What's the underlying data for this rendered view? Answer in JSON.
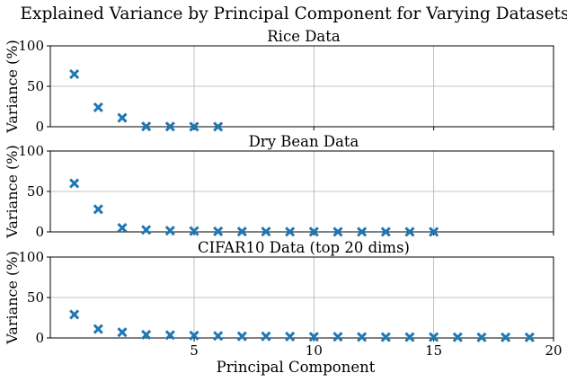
{
  "figure": {
    "suptitle": "Explained Variance by Principal Component for Varying Datasets"
  },
  "chart_data": [
    {
      "type": "scatter",
      "title": "Rice Data",
      "xlabel": "",
      "ylabel": "Variance (%)",
      "xlim": [
        -1,
        20
      ],
      "ylim": [
        0,
        100
      ],
      "xticks": [
        5,
        10,
        15,
        20
      ],
      "show_xtick_labels": false,
      "yticks": [
        0,
        50,
        100
      ],
      "grid": true,
      "marker": "x",
      "color": "#1f77b4",
      "x": [
        0,
        1,
        2,
        3,
        4,
        5,
        6
      ],
      "y": [
        65,
        24,
        11,
        0.3,
        0.2,
        0.1,
        0.05
      ]
    },
    {
      "type": "scatter",
      "title": "Dry Bean Data",
      "xlabel": "",
      "ylabel": "Variance (%)",
      "xlim": [
        -1,
        20
      ],
      "ylim": [
        0,
        100
      ],
      "xticks": [
        5,
        10,
        15,
        20
      ],
      "show_xtick_labels": false,
      "yticks": [
        0,
        50,
        100
      ],
      "grid": true,
      "marker": "x",
      "color": "#1f77b4",
      "x": [
        0,
        1,
        2,
        3,
        4,
        5,
        6,
        7,
        8,
        9,
        10,
        11,
        12,
        13,
        14,
        15
      ],
      "y": [
        60,
        28,
        5,
        2.5,
        1.5,
        1,
        0.6,
        0.4,
        0.3,
        0.2,
        0.15,
        0.1,
        0.05,
        0.03,
        0.02,
        0.01
      ]
    },
    {
      "type": "scatter",
      "title": "CIFAR10 Data (top 20 dims)",
      "xlabel": "Principal Component",
      "ylabel": "Variance (%)",
      "xlim": [
        -1,
        20
      ],
      "ylim": [
        0,
        100
      ],
      "xticks": [
        5,
        10,
        15,
        20
      ],
      "show_xtick_labels": true,
      "yticks": [
        0,
        50,
        100
      ],
      "grid": true,
      "marker": "x",
      "color": "#1f77b4",
      "x": [
        0,
        1,
        2,
        3,
        4,
        5,
        6,
        7,
        8,
        9,
        10,
        11,
        12,
        13,
        14,
        15,
        16,
        17,
        18,
        19
      ],
      "y": [
        29,
        11,
        7,
        4,
        3.5,
        3,
        2.5,
        2,
        2,
        1.8,
        1.5,
        1.4,
        1.2,
        1.1,
        1,
        1,
        0.9,
        0.8,
        0.8,
        0.7
      ]
    }
  ]
}
